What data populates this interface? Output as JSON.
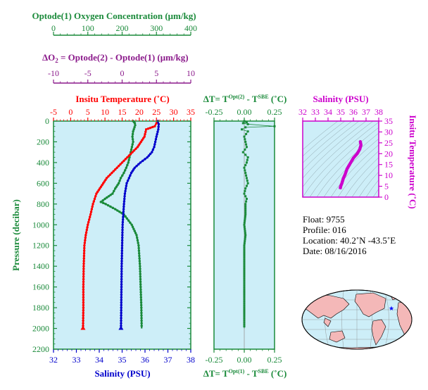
{
  "colors": {
    "oxygen": "#1a8a3a",
    "delta_o2": "#8b1a8b",
    "temperature": "#ff0000",
    "salinity": "#0000cc",
    "pressure": "#1a8a3a",
    "ts_temperature": "#cc00cc",
    "panel_bg": "#cdeef8",
    "land": "#f4b8b8",
    "float_marker": "#0000ff"
  },
  "header": {
    "oxygen_label": "Optode(1) Oxygen Concentration (μm/kg)",
    "delta_label_prefix": "ΔO",
    "delta_label_sub": "2",
    "delta_label_rest": " = Optode(2) - Optode(1)   (μm/kg)"
  },
  "labels": {
    "temp_axis": "Insitu Temperature (˚C)",
    "salinity_axis": "Salinity (PSU)",
    "pressure_axis": "Pressure (decibar)",
    "dt_top": "ΔT= T",
    "dt_top_sup1": "Opt(2)",
    "dt_top_mid": " - T",
    "dt_top_sup2": "SBE",
    "dt_top_unit": " (˚C)",
    "dt_bottom": "ΔT= T",
    "dt_bottom_sup1": "Opt(1)",
    "dt_bottom_mid": " - T",
    "dt_bottom_sup2": "SBE",
    "dt_bottom_unit": " (˚C)",
    "ts_salinity": "Salinity (PSU)",
    "ts_temperature": "Insitu Temperature (˚C)"
  },
  "info": {
    "float": "Float:  9755",
    "profile": "Profile:  016",
    "location": "Location:  40.2˚N  -43.5˚E",
    "date": "Date:  08/16/2016"
  },
  "chart_data": [
    {
      "type": "line",
      "panel": "main profiles",
      "pressure_axis": {
        "label": "Pressure (decibar)",
        "lim": [
          0,
          2200
        ],
        "ticks": [
          0,
          200,
          400,
          600,
          800,
          1000,
          1200,
          1400,
          1600,
          1800,
          2000,
          2200
        ],
        "inverted": true
      },
      "axes": {
        "oxygen": {
          "label": "Optode(1) Oxygen Concentration (μm/kg)",
          "lim": [
            0,
            400
          ],
          "ticks": [
            0,
            100,
            200,
            300,
            400
          ]
        },
        "delta_o2": {
          "label": "ΔO2 = Optode(2) - Optode(1) (μm/kg)",
          "lim": [
            -10,
            10
          ],
          "ticks": [
            -10,
            -5,
            0,
            5,
            10
          ]
        },
        "temperature": {
          "label": "Insitu Temperature (˚C)",
          "lim": [
            -5,
            35
          ],
          "ticks": [
            -5,
            0,
            5,
            10,
            15,
            20,
            25,
            30,
            35
          ]
        },
        "salinity": {
          "label": "Salinity (PSU)",
          "lim": [
            32,
            38
          ],
          "ticks": [
            32,
            33,
            34,
            35,
            36,
            37,
            38
          ]
        }
      },
      "series": [
        {
          "name": "oxygen",
          "x": [
            232,
            235,
            237,
            238,
            236,
            232,
            230,
            232,
            225,
            218,
            212,
            205,
            196,
            190,
            180,
            172,
            150,
            138,
            152,
            180,
            205,
            228,
            242,
            248,
            252,
            254,
            256,
            257
          ],
          "y": [
            0,
            10,
            20,
            40,
            60,
            100,
            150,
            200,
            300,
            400,
            450,
            500,
            550,
            600,
            650,
            700,
            750,
            780,
            800,
            850,
            900,
            1000,
            1100,
            1200,
            1400,
            1600,
            1800,
            2000
          ]
        },
        {
          "name": "temperature",
          "x": [
            25.5,
            25.0,
            24.5,
            22.0,
            21.5,
            20.5,
            19.5,
            18.0,
            16.5,
            15.0,
            13.5,
            12.0,
            10.5,
            9.5,
            8.5,
            7.5,
            6.5,
            5.8,
            5.0,
            4.4,
            4.0,
            3.8,
            3.7,
            3.7,
            3.6
          ],
          "y": [
            0,
            20,
            50,
            80,
            150,
            200,
            250,
            300,
            350,
            400,
            450,
            500,
            550,
            600,
            650,
            700,
            800,
            900,
            1000,
            1100,
            1200,
            1400,
            1600,
            1800,
            2000
          ]
        },
        {
          "name": "salinity",
          "x": [
            36.55,
            36.6,
            36.58,
            36.5,
            36.4,
            36.3,
            36.1,
            35.8,
            35.55,
            35.4,
            35.3,
            35.2,
            35.12,
            35.08,
            35.05,
            35.02,
            35.0,
            34.98,
            34.97,
            34.96,
            34.95
          ],
          "y": [
            0,
            30,
            80,
            150,
            250,
            300,
            350,
            400,
            450,
            500,
            550,
            600,
            700,
            800,
            900,
            1000,
            1200,
            1400,
            1600,
            1800,
            2000
          ]
        }
      ]
    },
    {
      "type": "scatter",
      "panel": "temperature difference",
      "x_axis": {
        "label_top": "ΔT= T^Opt(2) - T^SBE (˚C)",
        "label_bottom": "ΔT= T^Opt(1) - T^SBE (˚C)",
        "lim": [
          -0.25,
          0.25
        ],
        "ticks": [
          -0.25,
          0,
          0.25
        ]
      },
      "y_lim": [
        0,
        2200
      ],
      "series": [
        {
          "name": "ΔT Opt(2)",
          "x": [
            0.0,
            0.02,
            -0.01,
            0.03,
            0.25,
            0.01,
            -0.02,
            0.03,
            0.0,
            0.01,
            0.02,
            -0.01,
            0.03,
            0.02,
            0.0,
            0.01,
            0.02,
            0.03,
            0.01,
            0.0,
            0.02,
            0.01,
            0.01,
            0.0,
            0.01,
            0.0,
            0.0,
            0.0,
            0.0,
            0.0,
            0.0
          ],
          "y": [
            0,
            10,
            20,
            30,
            50,
            60,
            80,
            100,
            150,
            200,
            250,
            300,
            350,
            400,
            450,
            500,
            550,
            600,
            650,
            700,
            750,
            800,
            900,
            1000,
            1100,
            1200,
            1400,
            1600,
            1800,
            1900,
            2000
          ]
        }
      ]
    },
    {
      "type": "line",
      "panel": "T-S diagram",
      "x_axis": {
        "label": "Salinity (PSU)",
        "lim": [
          32,
          38
        ],
        "ticks": [
          32,
          33,
          34,
          35,
          36,
          37,
          38
        ]
      },
      "y_axis": {
        "label": "Insitu Temperature (˚C)",
        "lim": [
          0,
          35
        ],
        "ticks": [
          0,
          5,
          10,
          15,
          20,
          25,
          30,
          35
        ]
      },
      "series": [
        {
          "name": "T-S",
          "x": [
            36.55,
            36.6,
            36.5,
            36.3,
            36.0,
            35.7,
            35.5,
            35.35,
            35.2,
            35.1,
            35.0,
            34.95
          ],
          "y": [
            25.5,
            24.0,
            22.0,
            20.0,
            18.0,
            15.0,
            13.0,
            10.5,
            8.5,
            6.5,
            5.0,
            3.7
          ]
        }
      ]
    }
  ]
}
